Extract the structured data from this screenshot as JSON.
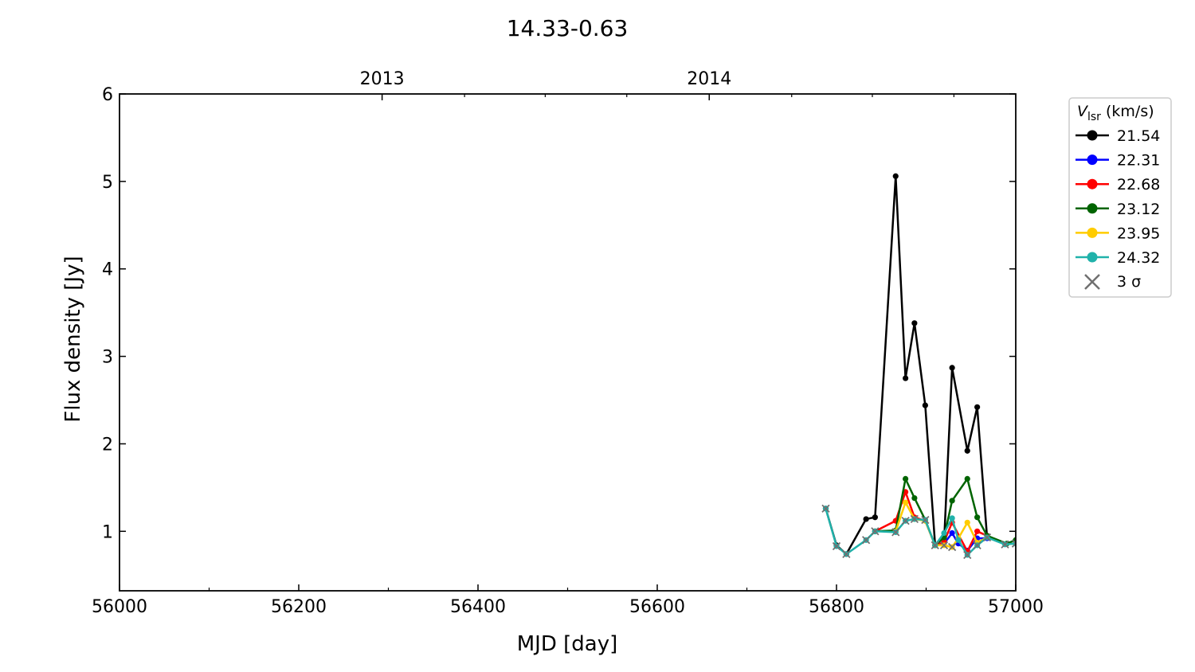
{
  "chart_data": {
    "type": "line",
    "title": "14.33-0.63",
    "xlabel": "MJD [day]",
    "ylabel": "Flux density [Jy]",
    "xlim": [
      56000,
      57000
    ],
    "ylim": [
      0.32,
      6
    ],
    "x_ticks": [
      56000,
      56200,
      56400,
      56600,
      56800,
      57000
    ],
    "x_minor_ticks": [
      56100,
      56300,
      56500,
      56700,
      56900
    ],
    "y_ticks": [
      1,
      2,
      3,
      4,
      5,
      6
    ],
    "top_axis": {
      "ticks": [
        {
          "value": 56293,
          "label": "2013"
        },
        {
          "value": 56658,
          "label": "2014"
        }
      ],
      "minor_ticks": [
        56385,
        56475,
        56566,
        56750,
        56840,
        56931
      ]
    },
    "grid": false,
    "legend": {
      "title_main": "V",
      "title_sub": "lsr",
      "title_unit": " (km/s)",
      "placement": "outside-right",
      "sigma_label": "3 σ",
      "sigma_color": "#707070"
    },
    "series": [
      {
        "name": "21.54",
        "color": "#000000",
        "x": [
          56788,
          56800,
          56811,
          56833,
          56843,
          56866,
          56877,
          56887,
          56899,
          56910,
          56920,
          56929,
          56946,
          56957,
          56968
        ],
        "y": [
          1.26,
          0.84,
          0.74,
          1.14,
          1.16,
          5.06,
          2.75,
          3.38,
          2.44,
          0.84,
          0.87,
          2.87,
          1.92,
          2.42,
          0.93
        ]
      },
      {
        "name": "22.31",
        "color": "#0000ff",
        "x": [
          56910,
          56920,
          56929,
          56936,
          56946,
          56957,
          56968
        ],
        "y": [
          0.84,
          0.86,
          0.98,
          0.86,
          0.78,
          0.92,
          0.92
        ]
      },
      {
        "name": "22.68",
        "color": "#ff0000",
        "x": [
          56843,
          56866,
          56877,
          56887,
          56899,
          56910,
          56920,
          56929,
          56946,
          56957,
          56968
        ],
        "y": [
          1.0,
          1.12,
          1.45,
          1.16,
          1.12,
          0.84,
          0.88,
          1.1,
          0.77,
          1.0,
          0.95
        ]
      },
      {
        "name": "23.12",
        "color": "#006400",
        "x": [
          56843,
          56866,
          56877,
          56887,
          56899,
          56910,
          56920,
          56929,
          56946,
          56957,
          56968,
          56990,
          57000
        ],
        "y": [
          1.0,
          1.01,
          1.6,
          1.38,
          1.13,
          0.84,
          0.93,
          1.35,
          1.6,
          1.16,
          0.95,
          0.86,
          0.9
        ]
      },
      {
        "name": "23.95",
        "color": "#ffcc00",
        "x": [
          56866,
          56877,
          56887,
          56899,
          56910,
          56920,
          56929,
          56936,
          56946,
          56957,
          56968
        ],
        "y": [
          1.0,
          1.33,
          1.14,
          1.12,
          0.84,
          0.84,
          0.82,
          0.92,
          1.1,
          0.87,
          0.93
        ]
      },
      {
        "name": "24.32",
        "color": "#20b2aa",
        "x": [
          56788,
          56800,
          56811,
          56833,
          56843,
          56866,
          56877,
          56887,
          56899,
          56910,
          56920,
          56929,
          56936,
          56946,
          56957,
          56968,
          56988,
          57000
        ],
        "y": [
          1.26,
          0.83,
          0.74,
          0.9,
          1.0,
          0.99,
          1.12,
          1.14,
          1.13,
          0.84,
          0.98,
          1.15,
          0.9,
          0.73,
          0.84,
          0.93,
          0.85,
          0.86
        ]
      }
    ],
    "sigma_markers": {
      "x": [
        56788,
        56800,
        56811,
        56833,
        56843,
        56866,
        56877,
        56887,
        56899,
        56910,
        56920,
        56929,
        56946,
        56957,
        56968,
        56988,
        57000
      ],
      "y": [
        1.26,
        0.83,
        0.74,
        0.9,
        1.0,
        0.99,
        1.12,
        1.14,
        1.13,
        0.84,
        0.84,
        0.82,
        0.73,
        0.84,
        0.93,
        0.85,
        0.86
      ]
    }
  }
}
